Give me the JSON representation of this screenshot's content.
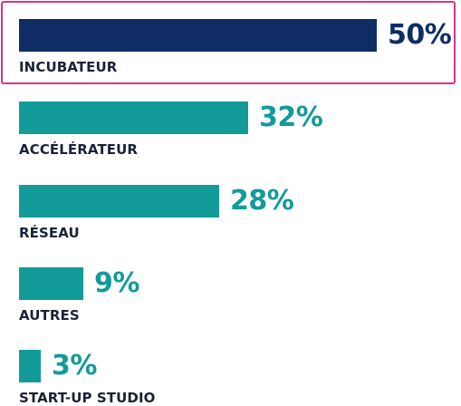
{
  "chart_data": {
    "type": "bar",
    "orientation": "horizontal",
    "categories": [
      "INCUBATEUR",
      "ACCÉLÉRATEUR",
      "RÉSEAU",
      "AUTRES",
      "START-UP STUDIO"
    ],
    "values": [
      50,
      32,
      28,
      9,
      3
    ],
    "value_labels": [
      "50%",
      "32%",
      "28%",
      "9%",
      "3%"
    ],
    "unit": "%",
    "highlighted": "INCUBATEUR",
    "grid": false,
    "legend": "none"
  },
  "colors": {
    "highlight_bar": "#0f2d64",
    "bar": "#129b99",
    "highlight_border": "#d6338f",
    "label_text": "#1a2236"
  }
}
